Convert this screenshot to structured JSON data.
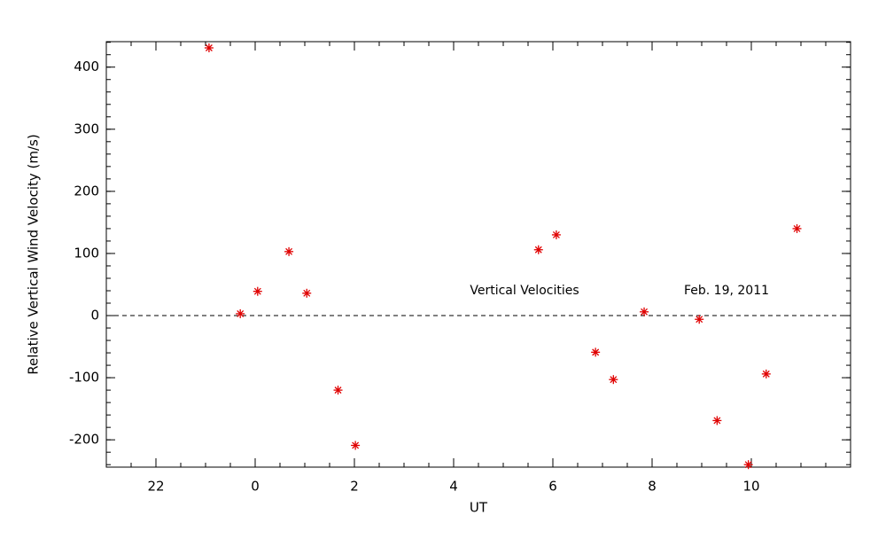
{
  "chart_data": {
    "type": "scatter",
    "x_label": "UT",
    "y_label": "Relative Vertical Wind Velocity (m/s)",
    "annotations": [
      "Vertical Velocities",
      "Feb. 19, 2011"
    ],
    "x": [
      -0.93,
      -0.3,
      0.05,
      0.68,
      1.04,
      1.67,
      2.02,
      5.71,
      6.07,
      6.86,
      7.22,
      7.84,
      8.95,
      9.31,
      9.94,
      10.3,
      10.92
    ],
    "values": [
      431,
      3,
      39,
      103,
      36,
      -120,
      -209,
      106,
      130,
      -59,
      -103,
      6,
      -6,
      -169,
      -240,
      -94,
      140
    ],
    "color": "#e00000",
    "xlim": [
      -3,
      12
    ],
    "xticks": [
      {
        "value": -2,
        "label": "22"
      },
      0,
      2,
      4,
      6,
      8,
      10
    ],
    "ylim": [
      -244,
      441
    ],
    "yticks": [
      -200,
      -100,
      0,
      100,
      200,
      300,
      400
    ],
    "zero_line": true
  }
}
